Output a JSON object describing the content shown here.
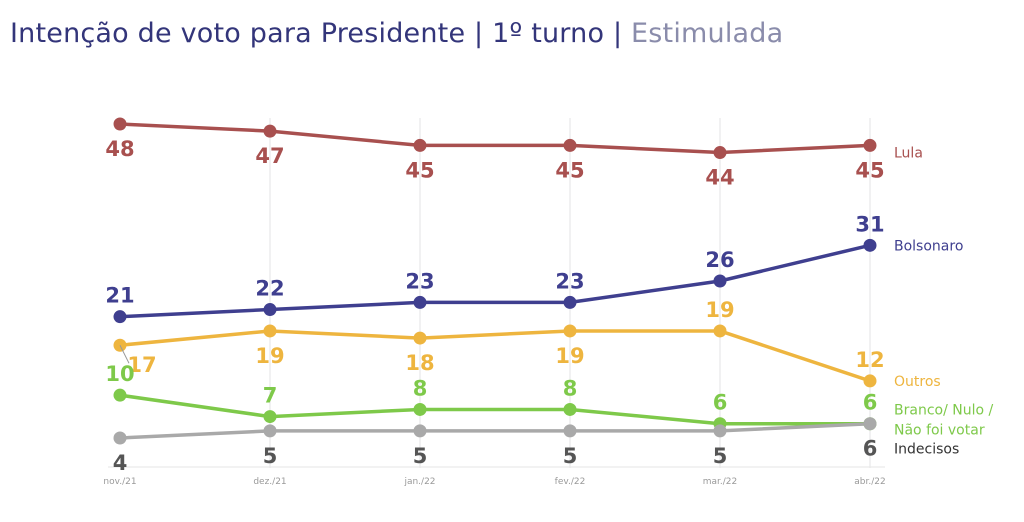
{
  "header": {
    "title_main": "Intenção de voto para Presidente | 1º turno | ",
    "title_sub": "Estimulada"
  },
  "chart_data": {
    "type": "line",
    "title": "Intenção de voto para Presidente | 1º turno | Estimulada",
    "xlabel": "",
    "ylabel": "",
    "x": [
      "nov./21",
      "dez./21",
      "jan./22",
      "fev./22",
      "mar./22",
      "abr./22"
    ],
    "ylim": [
      4,
      48
    ],
    "grid": "vertical",
    "legend": "right (inline at line ends)",
    "series": [
      {
        "name": "Lula",
        "color": "#a8504f",
        "values": [
          48,
          47,
          45,
          45,
          44,
          45
        ],
        "label_pos": [
          "below",
          "below",
          "below",
          "below",
          "below",
          "below"
        ]
      },
      {
        "name": "Bolsonaro",
        "color": "#3f3f8f",
        "values": [
          21,
          22,
          23,
          23,
          26,
          31
        ],
        "label_pos": [
          "above",
          "above",
          "above",
          "above",
          "above",
          "above"
        ]
      },
      {
        "name": "Outros",
        "color": "#eeb53f",
        "values": [
          17,
          19,
          18,
          19,
          19,
          12
        ],
        "label_pos": [
          "right-below",
          "below",
          "below",
          "below",
          "above",
          "above"
        ]
      },
      {
        "name": "Branco/ Nulo / Não foi votar",
        "legend_lines": [
          "Branco/ Nulo /",
          "Não foi votar"
        ],
        "color": "#7ec94a",
        "values": [
          10,
          7,
          8,
          8,
          6,
          6
        ],
        "label_pos": [
          "above",
          "above",
          "above",
          "above",
          "above",
          "above"
        ]
      },
      {
        "name": "Indecisos",
        "color": "#a9a9a9",
        "label_color": "#555555",
        "legend_color": "#333333",
        "values": [
          4,
          5,
          5,
          5,
          5,
          6
        ],
        "label_pos": [
          "below",
          "below",
          "below",
          "below",
          "below",
          "below"
        ]
      }
    ]
  }
}
